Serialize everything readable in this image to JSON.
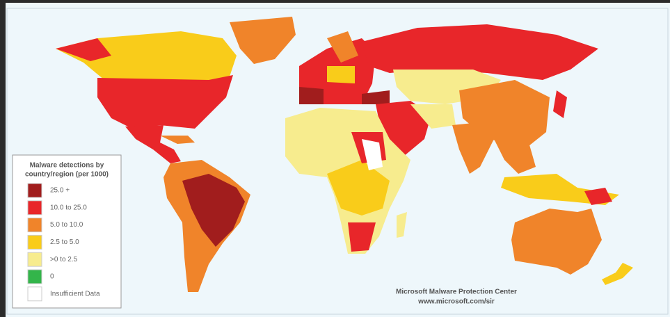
{
  "legend": {
    "title_lines": [
      "Malware detections by",
      "country/region (per 1000)"
    ],
    "items": [
      {
        "label": "25.0 +",
        "color": "#a11d1d"
      },
      {
        "label": "10.0 to 25.0",
        "color": "#e8262a"
      },
      {
        "label": "5.0 to 10.0",
        "color": "#f0842a"
      },
      {
        "label": "2.5 to 5.0",
        "color": "#f9cc1a"
      },
      {
        "label": ">0 to 2.5",
        "color": "#f7ec8e"
      },
      {
        "label": "0",
        "color": "#33b54a"
      },
      {
        "label": "Insufficient Data",
        "color": "#ffffff"
      }
    ]
  },
  "credit": {
    "line1": "Microsoft Malware Protection Center",
    "line2": "www.microsoft.com/sir"
  }
}
